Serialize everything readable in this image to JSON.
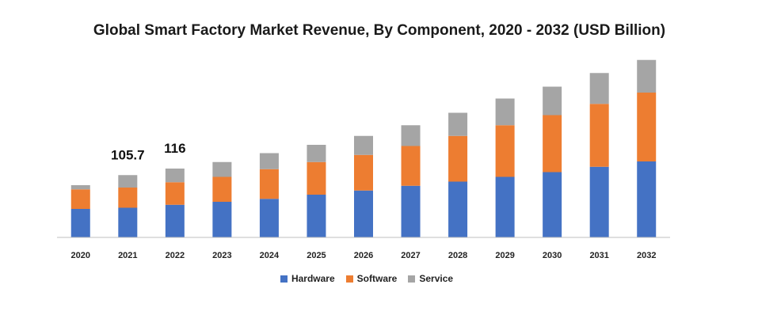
{
  "chart_data": {
    "type": "bar",
    "stacked": true,
    "title": "Global Smart Factory Market Revenue, By Component, 2020 - 2032 (USD Billion)",
    "xlabel": "",
    "ylabel": "",
    "categories": [
      "2020",
      "2021",
      "2022",
      "2023",
      "2024",
      "2025",
      "2026",
      "2027",
      "2028",
      "2029",
      "2030",
      "2031",
      "2032"
    ],
    "series": [
      {
        "name": "Hardware",
        "color": "#4472c4",
        "values": [
          48,
          50,
          55,
          60,
          65,
          72,
          79,
          87,
          94,
          102,
          110,
          119,
          128
        ]
      },
      {
        "name": "Software",
        "color": "#ed7d31",
        "values": [
          33,
          34,
          38,
          42,
          50,
          55,
          60,
          67,
          77,
          87,
          96,
          106,
          116
        ]
      },
      {
        "name": "Service",
        "color": "#a5a5a5",
        "values": [
          7,
          21,
          23,
          25,
          27,
          29,
          32,
          35,
          39,
          45,
          48,
          52,
          55
        ]
      }
    ],
    "annotations": [
      {
        "category": "2021",
        "text": "105.7"
      },
      {
        "category": "2022",
        "text": "116"
      }
    ],
    "legend_position": "bottom",
    "grid": false,
    "ylim": [
      0,
      320
    ]
  }
}
